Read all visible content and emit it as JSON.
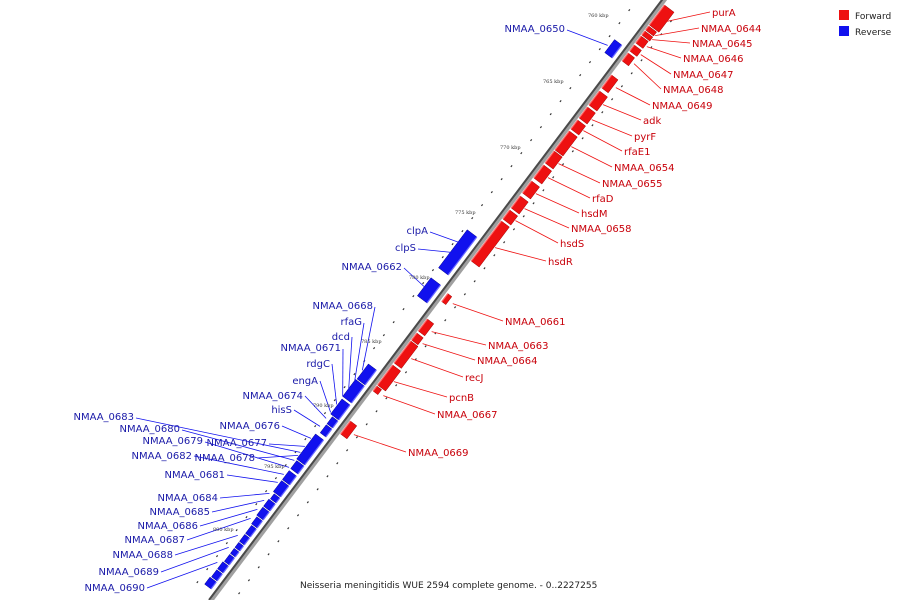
{
  "caption": "Neisseria meningitidis WUE 2594 complete genome. - 0..2227255",
  "legend": [
    {
      "label": "Forward",
      "color": "#ee1111"
    },
    {
      "label": "Reverse",
      "color": "#1111ee"
    }
  ],
  "colors": {
    "forward": "#ee1111",
    "reverse": "#1111ee",
    "forward_label": "#c8000a",
    "reverse_label": "#1a1aa8"
  },
  "scale_ticks": [
    "760 kbp",
    "765 kbp",
    "770 kbp",
    "775 kbp",
    "780 kbp",
    "785 kbp",
    "790 kbp",
    "795 kbp",
    "800 kbp"
  ],
  "forward_genes": [
    "purA",
    "NMAA_0644",
    "NMAA_0645",
    "NMAA_0646",
    "NMAA_0647",
    "NMAA_0648",
    "NMAA_0649",
    "adk",
    "pyrF",
    "rfaE1",
    "NMAA_0654",
    "NMAA_0655",
    "rfaD",
    "hsdM",
    "NMAA_0658",
    "hsdS",
    "hsdR",
    "NMAA_0661",
    "NMAA_0663",
    "NMAA_0664",
    "recJ",
    "pcnB",
    "NMAA_0667",
    "NMAA_0669"
  ],
  "reverse_genes": [
    "NMAA_0650",
    "clpA",
    "clpS",
    "NMAA_0662",
    "NMAA_0668",
    "rfaG",
    "dcd",
    "NMAA_0671",
    "rdgC",
    "engA",
    "NMAA_0674",
    "hisS",
    "NMAA_0676",
    "NMAA_0683",
    "NMAA_0680",
    "NMAA_0679",
    "NMAA_0677",
    "NMAA_0682",
    "NMAA_0678",
    "NMAA_0681",
    "NMAA_0684",
    "NMAA_0685",
    "NMAA_0686",
    "NMAA_0687",
    "NMAA_0688",
    "NMAA_0689",
    "NMAA_0690"
  ]
}
